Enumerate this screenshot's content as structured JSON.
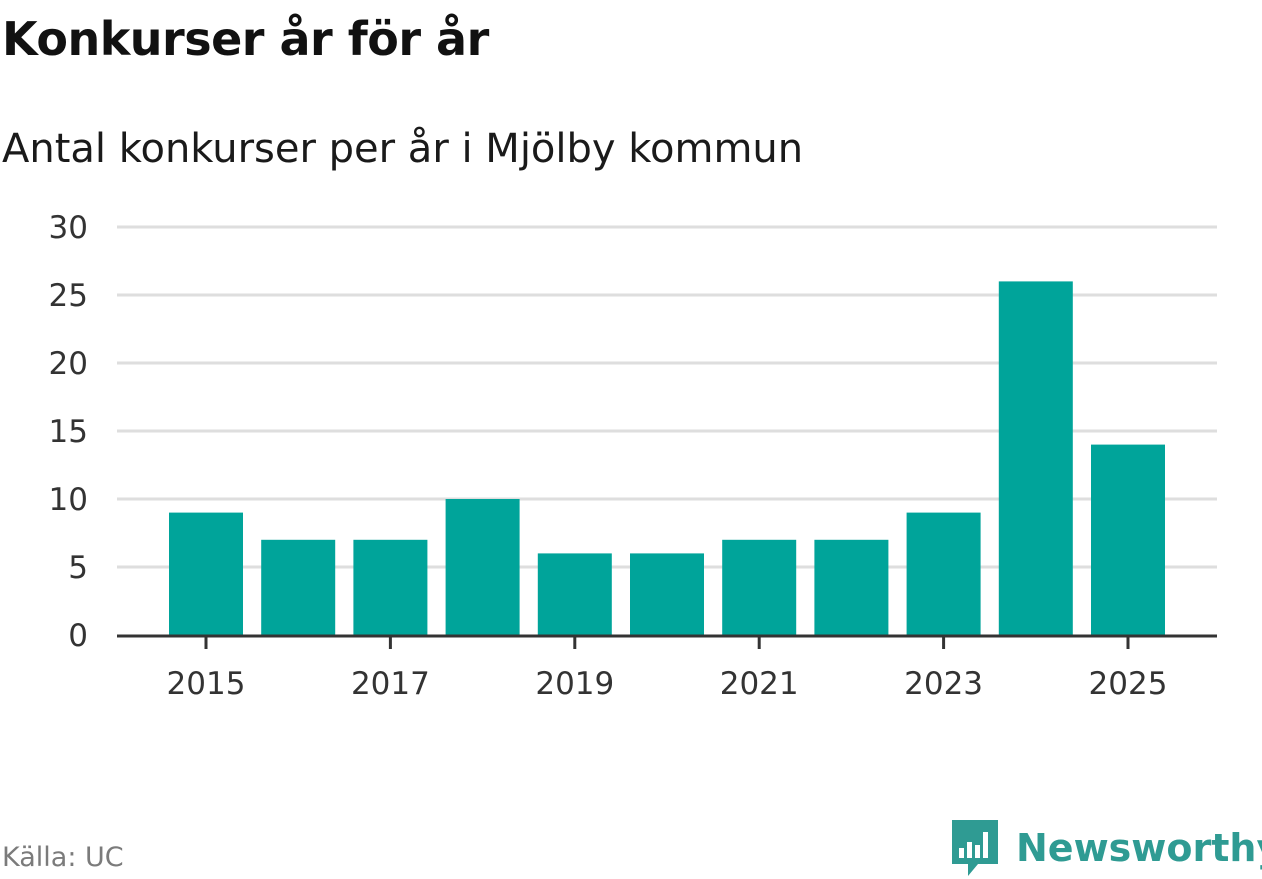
{
  "header": {
    "title": "Konkurser år för år",
    "subtitle": "Antal konkurser per år i Mjölby kommun"
  },
  "footer": {
    "source": "Källa: UC",
    "brand": "Newsworthy"
  },
  "colors": {
    "bar": "#00a49a",
    "grid": "#dedede",
    "axis": "#333333",
    "brand": "#2f9b93",
    "source_text": "#7b7b7b"
  },
  "icons": {
    "brand_logo": "newsworthy-logo-icon"
  },
  "chart_data": {
    "type": "bar",
    "title": "",
    "xlabel": "",
    "ylabel": "",
    "categories": [
      "2015",
      "2016",
      "2017",
      "2018",
      "2019",
      "2020",
      "2021",
      "2022",
      "2023",
      "2024",
      "2025"
    ],
    "values": [
      9,
      7,
      7,
      10,
      6,
      6,
      7,
      7,
      9,
      26,
      14
    ],
    "x_tick_labels": [
      "2015",
      "2017",
      "2019",
      "2021",
      "2023",
      "2025"
    ],
    "y_ticks": [
      0,
      5,
      10,
      15,
      20,
      25,
      30
    ],
    "ylim": [
      0,
      30
    ],
    "grid": true,
    "legend": "none"
  }
}
